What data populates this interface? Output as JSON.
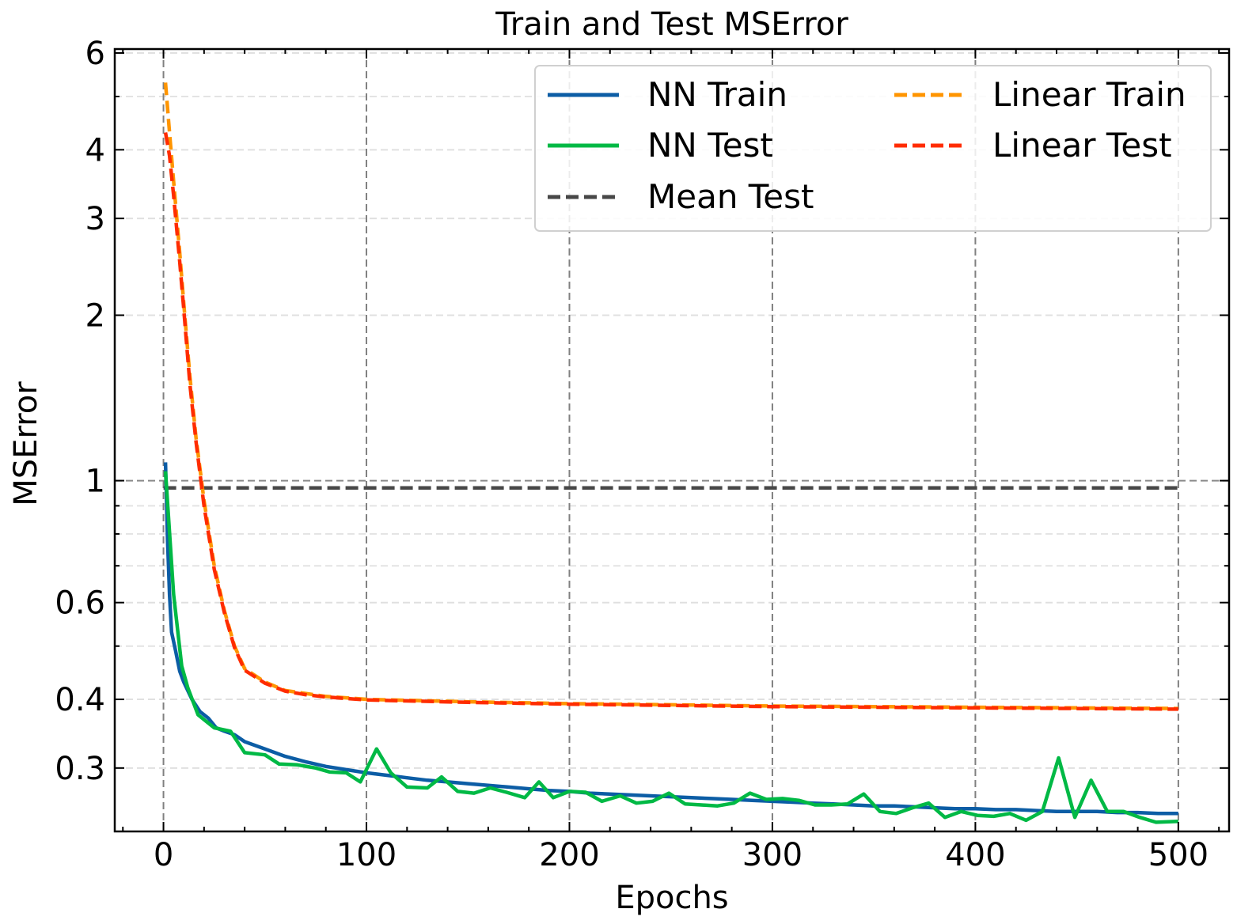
{
  "chart_data": {
    "type": "line",
    "title": "Train and Test MSError",
    "xlabel": "Epochs",
    "ylabel": "MSError",
    "xlim": [
      -24,
      525
    ],
    "ylim": [
      0.23,
      6.1
    ],
    "yscale": "log",
    "grid": true,
    "legend_position": "top-right",
    "xticks": [
      0,
      100,
      200,
      300,
      400,
      500
    ],
    "xtick_labels": [
      "0",
      "100",
      "200",
      "300",
      "400",
      "500"
    ],
    "yticks": [
      0.3,
      0.4,
      0.6,
      1,
      2,
      3,
      4,
      6
    ],
    "ytick_labels": [
      "0.3",
      "0.4",
      "0.6",
      "1",
      "2",
      "3",
      "4",
      "6"
    ],
    "yminor_grid": [
      0.5,
      0.7,
      0.8,
      0.9,
      5
    ],
    "series": [
      {
        "name": "NN Train",
        "color": "#0C5DA5",
        "style": "solid",
        "x": [
          1,
          2,
          3,
          4,
          6,
          8,
          10,
          14,
          18,
          22,
          26,
          30,
          35,
          40,
          50,
          60,
          70,
          80,
          90,
          100,
          110,
          120,
          130,
          140,
          150,
          160,
          170,
          180,
          190,
          200,
          210,
          220,
          230,
          240,
          250,
          260,
          270,
          280,
          290,
          300,
          310,
          320,
          330,
          340,
          350,
          360,
          370,
          380,
          390,
          400,
          410,
          420,
          430,
          440,
          450,
          460,
          470,
          480,
          490,
          500
        ],
        "y": [
          1.08,
          0.78,
          0.62,
          0.53,
          0.49,
          0.45,
          0.43,
          0.4,
          0.38,
          0.37,
          0.355,
          0.35,
          0.345,
          0.335,
          0.325,
          0.315,
          0.308,
          0.302,
          0.298,
          0.294,
          0.291,
          0.288,
          0.285,
          0.283,
          0.281,
          0.279,
          0.277,
          0.275,
          0.273,
          0.272,
          0.27,
          0.269,
          0.268,
          0.267,
          0.266,
          0.265,
          0.264,
          0.263,
          0.262,
          0.261,
          0.26,
          0.259,
          0.258,
          0.257,
          0.256,
          0.256,
          0.255,
          0.254,
          0.253,
          0.253,
          0.252,
          0.252,
          0.251,
          0.25,
          0.25,
          0.25,
          0.249,
          0.249,
          0.248,
          0.248
        ]
      },
      {
        "name": "NN Test",
        "color": "#00B945",
        "style": "solid",
        "x": [
          1,
          5,
          9,
          12,
          17,
          25,
          33,
          40,
          50,
          57,
          66,
          75,
          82,
          90,
          97,
          105,
          112,
          120,
          130,
          137,
          145,
          153,
          161,
          169,
          178,
          185,
          192,
          200,
          208,
          216,
          225,
          233,
          241,
          249,
          257,
          265,
          273,
          281,
          289,
          297,
          305,
          313,
          321,
          329,
          337,
          345,
          353,
          361,
          369,
          377,
          385,
          393,
          401,
          409,
          417,
          425,
          433,
          441,
          449,
          457,
          465,
          473,
          481,
          489,
          500
        ],
        "y": [
          1.04,
          0.62,
          0.46,
          0.42,
          0.375,
          0.355,
          0.35,
          0.32,
          0.317,
          0.305,
          0.304,
          0.3,
          0.295,
          0.294,
          0.283,
          0.325,
          0.294,
          0.277,
          0.276,
          0.289,
          0.272,
          0.27,
          0.276,
          0.271,
          0.265,
          0.283,
          0.265,
          0.272,
          0.271,
          0.261,
          0.267,
          0.259,
          0.261,
          0.27,
          0.258,
          0.257,
          0.256,
          0.259,
          0.27,
          0.263,
          0.264,
          0.262,
          0.257,
          0.257,
          0.258,
          0.269,
          0.25,
          0.248,
          0.254,
          0.259,
          0.244,
          0.25,
          0.246,
          0.245,
          0.248,
          0.241,
          0.25,
          0.313,
          0.244,
          0.285,
          0.25,
          0.25,
          0.244,
          0.239,
          0.24
        ]
      },
      {
        "name": "Mean Test",
        "color": "#474747",
        "style": "dashed",
        "x": [
          0,
          500
        ],
        "y": [
          0.97,
          0.97
        ]
      },
      {
        "name": "Linear Train",
        "color": "#FF9500",
        "style": "dashed",
        "x": [
          1,
          3,
          5,
          8,
          10,
          13,
          16,
          20,
          25,
          30,
          35,
          40,
          50,
          60,
          70,
          80,
          100,
          150,
          200,
          250,
          300,
          350,
          400,
          450,
          500
        ],
        "y": [
          5.3,
          4.3,
          3.5,
          2.6,
          2.1,
          1.55,
          1.2,
          0.92,
          0.7,
          0.58,
          0.5,
          0.455,
          0.43,
          0.415,
          0.41,
          0.405,
          0.4,
          0.396,
          0.393,
          0.391,
          0.389,
          0.388,
          0.387,
          0.386,
          0.385
        ]
      },
      {
        "name": "Linear Test",
        "color": "#FF2C00",
        "style": "dashed",
        "x": [
          1,
          3,
          5,
          8,
          10,
          13,
          16,
          20,
          25,
          30,
          35,
          40,
          50,
          60,
          70,
          80,
          100,
          150,
          200,
          250,
          300,
          350,
          400,
          450,
          500
        ],
        "y": [
          4.3,
          3.9,
          3.3,
          2.5,
          2.05,
          1.5,
          1.18,
          0.9,
          0.69,
          0.575,
          0.497,
          0.452,
          0.428,
          0.414,
          0.408,
          0.404,
          0.399,
          0.395,
          0.392,
          0.39,
          0.388,
          0.387,
          0.386,
          0.385,
          0.384
        ]
      }
    ]
  }
}
